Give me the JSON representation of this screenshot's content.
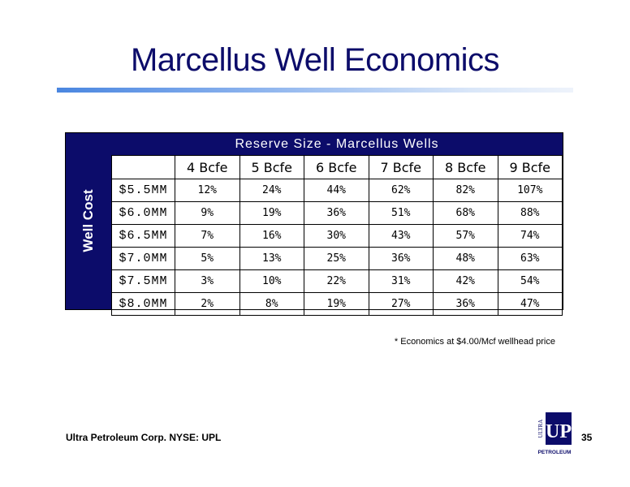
{
  "slide": {
    "title": "Marcellus Well Economics",
    "footnote": "* Economics at $4.00/Mcf wellhead price",
    "footer_text": "Ultra Petroleum Corp. NYSE: UPL",
    "page_number": "35",
    "logo": {
      "side_text": "ULTRA",
      "mark": "UP",
      "bottom_text": "PETROLEUM"
    }
  },
  "table": {
    "header": "Reserve Size - Marcellus Wells",
    "side_label": "Well Cost",
    "columns": [
      "4 Bcfe",
      "5 Bcfe",
      "6 Bcfe",
      "7 Bcfe",
      "8 Bcfe",
      "9 Bcfe"
    ],
    "rows": [
      {
        "label": "$5.5MM",
        "values": [
          "12%",
          "24%",
          "44%",
          "62%",
          "82%",
          "107%"
        ]
      },
      {
        "label": "$6.0MM",
        "values": [
          "9%",
          "19%",
          "36%",
          "51%",
          "68%",
          "88%"
        ]
      },
      {
        "label": "$6.5MM",
        "values": [
          "7%",
          "16%",
          "30%",
          "43%",
          "57%",
          "74%"
        ]
      },
      {
        "label": "$7.0MM",
        "values": [
          "5%",
          "13%",
          "25%",
          "36%",
          "48%",
          "63%"
        ]
      },
      {
        "label": "$7.5MM",
        "values": [
          "3%",
          "10%",
          "22%",
          "31%",
          "42%",
          "54%"
        ]
      },
      {
        "label": "$8.0MM",
        "values": [
          "2%",
          "8%",
          "19%",
          "27%",
          "36%",
          "47%"
        ]
      }
    ]
  },
  "colors": {
    "navy": "#0c0c6a",
    "accent_blue": "#4a86e0"
  }
}
